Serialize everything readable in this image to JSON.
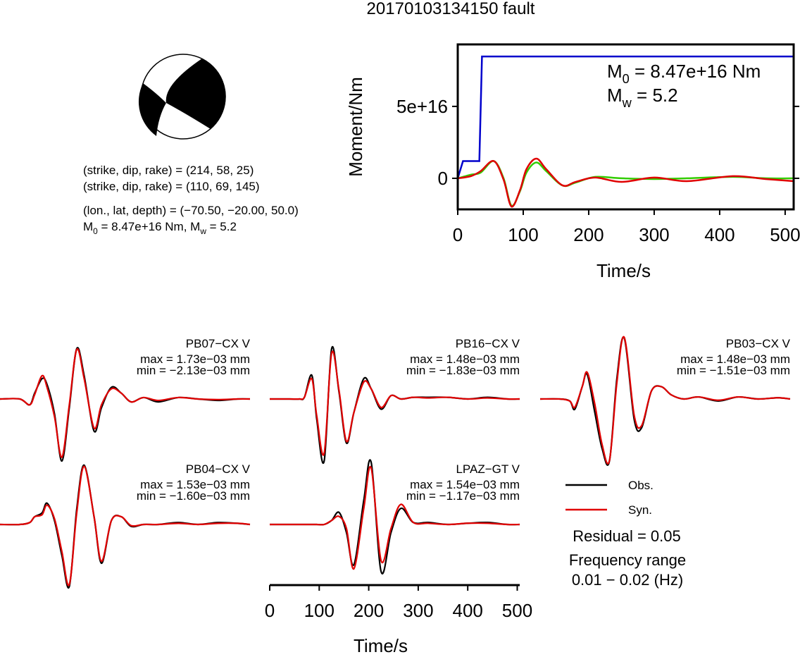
{
  "title": "20170103134150 fault",
  "source_info": {
    "lines": [
      "(strike, dip, rake) = (214, 58, 25)",
      "(strike, dip, rake) = (110, 69, 145)",
      "(lon., lat, depth) = (−70.50, −20.00, 50.0)"
    ],
    "moment_line": [
      {
        "text": "M"
      },
      {
        "sub": "0"
      },
      {
        "text": " = 8.47e+16 Nm, M"
      },
      {
        "sub": "w"
      },
      {
        "text": " = 5.2"
      }
    ]
  },
  "chart_data": [
    {
      "type": "line",
      "x_label": "Time/s",
      "y_label": "Moment/Nm",
      "xlim": [
        0,
        513
      ],
      "ylim": [
        -2.16e+16,
        9.31e+16
      ],
      "xticks": [
        0,
        100,
        200,
        300,
        400,
        500
      ],
      "yticks": [
        0,
        {
          "value": 5e+16,
          "label": "5e+16"
        }
      ],
      "annotations": [
        [
          {
            "text": "M"
          },
          {
            "sub": "0"
          },
          {
            "text": " = 8.47e+16 Nm"
          }
        ],
        [
          {
            "text": "M"
          },
          {
            "sub": "w"
          },
          {
            "text": " = 5.2"
          }
        ]
      ],
      "series": [
        {
          "color": "#0000cc",
          "x": [
            0,
            8,
            33,
            37,
            513
          ],
          "values": [
            0,
            1.2e+16,
            1.2e+16,
            8.47e+16,
            8.47e+16
          ]
        },
        {
          "color": "#33cc00",
          "x": [
            0,
            20,
            35,
            55,
            70,
            82,
            95,
            105,
            120,
            135,
            160,
            180,
            210,
            250,
            300,
            350,
            420,
            470,
            513
          ],
          "values": [
            0,
            2500000000000000.0,
            4000000000000000.0,
            1.2e+16,
            0,
            -1.9e+16,
            -9000000000000000.0,
            4000000000000000.0,
            1.1e+16,
            5000000000000000.0,
            -5000000000000000.0,
            -3000000000000000.0,
            1000000000000000.0,
            0,
            -500000000000000.0,
            0,
            1000000000000000.0,
            0,
            0
          ]
        },
        {
          "color": "#e00000",
          "x": [
            0,
            20,
            35,
            55,
            70,
            82,
            95,
            105,
            120,
            135,
            160,
            180,
            210,
            250,
            300,
            350,
            420,
            470,
            513
          ],
          "values": [
            0,
            1500000000000000.0,
            5000000000000000.0,
            1.2e+16,
            -1000000000000000.0,
            -1.96e+16,
            -8300000000000000.0,
            6400000000000000.0,
            1.37e+16,
            6400000000000000.0,
            -4900000000000000.0,
            -2500000000000000.0,
            500000000000000.0,
            -2500000000000000.0,
            500000000000000.0,
            -2000000000000000.0,
            1500000000000000.0,
            -500000000000000.0,
            -2000000000000000.0
          ]
        }
      ]
    },
    {
      "type": "waveforms",
      "x_label": "Time/s",
      "xlim": [
        0,
        505
      ],
      "xticks": [
        0,
        100,
        200,
        300,
        400,
        500
      ],
      "x": [
        0,
        40,
        60,
        70,
        85,
        95,
        110,
        125,
        140,
        155,
        170,
        190,
        205,
        225,
        245,
        265,
        290,
        320,
        360,
        400,
        440,
        480,
        505
      ],
      "legend": [
        {
          "name": "Obs.",
          "color": "#000000"
        },
        {
          "name": "Syn.",
          "color": "#e00000"
        }
      ],
      "residual": "Residual = 0.05",
      "frequency_label": "Frequency range",
      "frequency_range": "0.01 − 0.02 (Hz)",
      "panels": [
        {
          "station": "PB07−CX V",
          "max_label": "max = 1.73e−03 mm",
          "min_label": "min = −2.13e−03 mm",
          "obs": [
            0,
            0,
            -0.0002,
            0.0002,
            0.0007,
            0.0005,
            -0.0005,
            -0.00213,
            -0.0003,
            0.00173,
            0.0008,
            -0.0011,
            -0.0003,
            0.0004,
            0.0002,
            -0.0001,
            5e-05,
            -0.0001,
            5e-05,
            0,
            -5e-05,
            0,
            0
          ],
          "syn": [
            0,
            0,
            -0.0002,
            0.00015,
            0.0008,
            0.0004,
            -0.0006,
            -0.002,
            -0.0002,
            0.0017,
            0.0007,
            -0.001,
            -0.0002,
            0.00035,
            0.0002,
            -0.0001,
            5e-05,
            -5e-05,
            5e-05,
            0,
            -2e-05,
            0,
            0
          ]
        },
        {
          "station": "PB16−CX V",
          "max_label": "max = 1.48e−03 mm",
          "min_label": "min = −1.83e−03 mm",
          "obs": [
            0,
            0,
            0,
            5e-05,
            0.0007,
            -0.0006,
            -0.00183,
            0.00148,
            0.0002,
            -0.0013,
            -0.0004,
            0.0006,
            0.0003,
            -0.0003,
            0.0001,
            0,
            5e-05,
            5e-05,
            5e-05,
            0,
            5e-05,
            0,
            0
          ],
          "syn": [
            0,
            0,
            0,
            5e-05,
            0.0006,
            -0.0005,
            -0.0016,
            0.00135,
            0.00025,
            -0.00125,
            -0.0004,
            0.0005,
            0.0003,
            -0.00025,
            0.0001,
            0,
            5e-05,
            3e-05,
            5e-05,
            0,
            3e-05,
            0,
            0
          ]
        },
        {
          "station": "PB03−CX V",
          "max_label": "max = 1.48e−03 mm",
          "min_label": "min = −1.51e−03 mm",
          "obs": [
            0,
            0,
            -5e-05,
            -0.00025,
            0.0003,
            0.0006,
            -0.0003,
            -0.0012,
            -0.00151,
            0.0005,
            0.00148,
            -0.0005,
            -0.0007,
            0.0002,
            0.0003,
            0.0001,
            0,
            5e-05,
            -5e-05,
            5e-05,
            0,
            3e-05,
            0
          ],
          "syn": [
            0,
            0,
            -5e-05,
            -0.0002,
            0.0003,
            0.00065,
            -0.0001,
            -0.0011,
            -0.0015,
            0.0004,
            0.0015,
            -0.0004,
            -0.00065,
            0.0002,
            0.0003,
            0.0001,
            0,
            5e-05,
            -3e-05,
            5e-05,
            0,
            3e-05,
            0
          ]
        },
        {
          "station": "PB04−CX V",
          "max_label": "max = 1.53e−03 mm",
          "min_label": "min = −1.60e−03 mm",
          "obs": [
            0,
            0,
            5e-05,
            0.0002,
            0.0003,
            0.00055,
            0.0001,
            -0.0008,
            -0.0016,
            0.0004,
            0.00153,
            0.0002,
            -0.001,
            0.0001,
            0.0002,
            -5e-05,
            0,
            0,
            5e-05,
            0,
            5e-05,
            3e-05,
            0
          ],
          "syn": [
            0,
            0,
            5e-05,
            0.0002,
            0.00025,
            0.0005,
            0.00015,
            -0.0007,
            -0.00155,
            0.0003,
            0.0015,
            0.0002,
            -0.00095,
            0.0001,
            0.0002,
            -3e-05,
            0,
            0,
            3e-05,
            0,
            3e-05,
            3e-05,
            0
          ]
        },
        {
          "station": "LPAZ−GT V",
          "max_label": "max = 1.54e−03 mm",
          "min_label": "min = −1.17e−03 mm",
          "obs": [
            0,
            0,
            0,
            0,
            0,
            0,
            0,
            0.0001,
            0.0003,
            -0.0002,
            -0.001,
            0.0006,
            0.00154,
            -0.00117,
            -0.0002,
            0.0004,
            5e-05,
            5e-05,
            0,
            3e-05,
            5e-05,
            0,
            0
          ],
          "syn": [
            0,
            0,
            0,
            0,
            0,
            0,
            0,
            0.0001,
            0.0002,
            -0.0001,
            -0.0011,
            0.0004,
            0.0014,
            -0.0009,
            -0.0001,
            0.0005,
            5e-05,
            3e-05,
            0,
            3e-05,
            3e-05,
            0,
            0
          ]
        }
      ]
    }
  ]
}
